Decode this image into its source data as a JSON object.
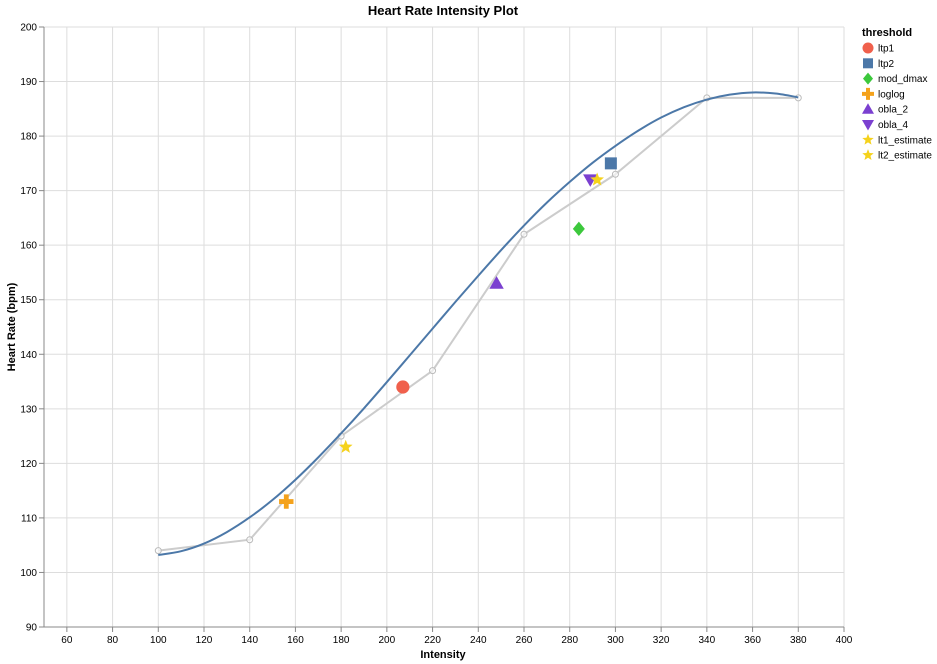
{
  "chart_data": {
    "type": "line",
    "title": "Heart Rate Intensity Plot",
    "xlabel": "Intensity",
    "ylabel": "Heart Rate (bpm)",
    "xlim": [
      50,
      400
    ],
    "ylim": [
      90,
      200
    ],
    "x_ticks": [
      60,
      80,
      100,
      120,
      140,
      160,
      180,
      200,
      220,
      240,
      260,
      280,
      300,
      320,
      340,
      360,
      380,
      400
    ],
    "y_ticks": [
      90,
      100,
      110,
      120,
      130,
      140,
      150,
      160,
      170,
      180,
      190,
      200
    ],
    "grid": true,
    "legend_position": "right",
    "legend_title": "threshold",
    "raw_series": {
      "color": "#cccccc",
      "points": [
        {
          "x": 100,
          "y": 104
        },
        {
          "x": 140,
          "y": 106
        },
        {
          "x": 180,
          "y": 125
        },
        {
          "x": 220,
          "y": 137
        },
        {
          "x": 260,
          "y": 162
        },
        {
          "x": 300,
          "y": 173
        },
        {
          "x": 340,
          "y": 187
        },
        {
          "x": 380,
          "y": 187
        }
      ]
    },
    "fit_series": {
      "color": "#4c78a8",
      "points": [
        {
          "x": 100,
          "y": 103.2
        },
        {
          "x": 110,
          "y": 103.9
        },
        {
          "x": 120,
          "y": 105.3
        },
        {
          "x": 130,
          "y": 107.4
        },
        {
          "x": 140,
          "y": 110.1
        },
        {
          "x": 150,
          "y": 113.3
        },
        {
          "x": 160,
          "y": 117.0
        },
        {
          "x": 170,
          "y": 121.1
        },
        {
          "x": 180,
          "y": 125.5
        },
        {
          "x": 190,
          "y": 130.1
        },
        {
          "x": 200,
          "y": 134.9
        },
        {
          "x": 210,
          "y": 139.8
        },
        {
          "x": 220,
          "y": 144.7
        },
        {
          "x": 230,
          "y": 149.6
        },
        {
          "x": 240,
          "y": 154.4
        },
        {
          "x": 250,
          "y": 159.1
        },
        {
          "x": 260,
          "y": 163.6
        },
        {
          "x": 270,
          "y": 167.8
        },
        {
          "x": 280,
          "y": 171.6
        },
        {
          "x": 290,
          "y": 175.1
        },
        {
          "x": 300,
          "y": 178.2
        },
        {
          "x": 310,
          "y": 181.0
        },
        {
          "x": 320,
          "y": 183.4
        },
        {
          "x": 330,
          "y": 185.3
        },
        {
          "x": 340,
          "y": 186.7
        },
        {
          "x": 350,
          "y": 187.6
        },
        {
          "x": 360,
          "y": 188.0
        },
        {
          "x": 370,
          "y": 187.8
        },
        {
          "x": 380,
          "y": 187.1
        }
      ]
    },
    "thresholds": [
      {
        "name": "ltp1",
        "shape": "circle",
        "color": "#f0604c",
        "x": 207,
        "y": 134
      },
      {
        "name": "ltp2",
        "shape": "square",
        "color": "#4c78a8",
        "x": 298,
        "y": 175
      },
      {
        "name": "mod_dmax",
        "shape": "diamond",
        "color": "#3cc83c",
        "x": 284,
        "y": 163
      },
      {
        "name": "loglog",
        "shape": "cross",
        "color": "#f4a21c",
        "x": 156,
        "y": 113
      },
      {
        "name": "obla_2",
        "shape": "triangle-up",
        "color": "#7b40d0",
        "x": 248,
        "y": 153
      },
      {
        "name": "obla_4",
        "shape": "triangle-down",
        "color": "#7b40d0",
        "x": 289,
        "y": 172
      },
      {
        "name": "lt1_estimate",
        "shape": "star",
        "color": "#f5d21c",
        "x": 182,
        "y": 123
      },
      {
        "name": "lt2_estimate",
        "shape": "star",
        "color": "#f5d21c",
        "x": 292,
        "y": 172
      }
    ]
  }
}
